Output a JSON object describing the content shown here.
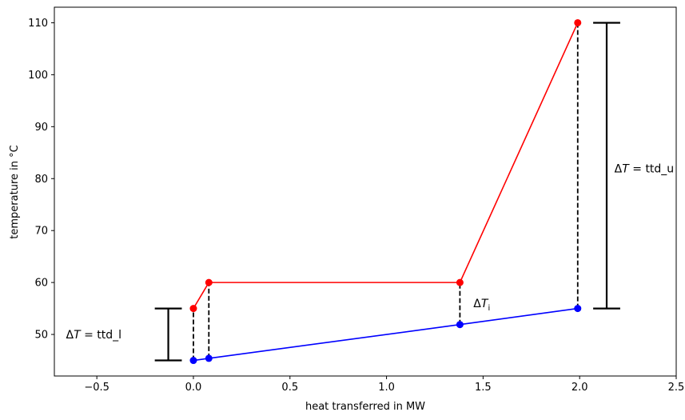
{
  "chart_data": {
    "type": "line",
    "title": "",
    "xlabel": "heat transferred in MW",
    "ylabel": "temperature in °C",
    "xlim": [
      -0.72,
      2.5
    ],
    "ylim": [
      42,
      113
    ],
    "grid": false,
    "xticks": [
      -0.5,
      0.0,
      0.5,
      1.0,
      1.5,
      2.0,
      2.5
    ],
    "xtick_labels": [
      "−0.5",
      "0.0",
      "0.5",
      "1.0",
      "1.5",
      "2.0",
      "2.5"
    ],
    "yticks": [
      50,
      60,
      70,
      80,
      90,
      100,
      110
    ],
    "ytick_labels": [
      "50",
      "60",
      "70",
      "80",
      "90",
      "100",
      "110"
    ],
    "series": [
      {
        "color": "#ff0000",
        "x": [
          0.0,
          0.08,
          1.38,
          1.99
        ],
        "y": [
          55,
          60,
          60,
          110
        ]
      },
      {
        "color": "#0000ff",
        "x": [
          0.0,
          0.08,
          1.38,
          1.99
        ],
        "y": [
          45,
          45.4,
          51.9,
          55
        ]
      }
    ],
    "dashed_connectors": [
      {
        "x": 0.0,
        "y1": 45,
        "y2": 55
      },
      {
        "x": 0.08,
        "y1": 45.4,
        "y2": 60
      },
      {
        "x": 1.38,
        "y1": 51.9,
        "y2": 60
      },
      {
        "x": 1.99,
        "y1": 55,
        "y2": 110
      }
    ],
    "error_bars": [
      {
        "x": -0.13,
        "y1": 45,
        "y2": 55,
        "cap_halfwidth": 0.07
      },
      {
        "x": 2.14,
        "y1": 55,
        "y2": 110,
        "cap_halfwidth": 0.07
      }
    ],
    "annotations": [
      {
        "id": "ttd-l",
        "prefix": "Δ",
        "var": "T",
        "sub": "",
        "suffix": " = ttd_l",
        "x": -0.66,
        "y": 50
      },
      {
        "id": "ttd-u",
        "prefix": "Δ",
        "var": "T",
        "sub": "",
        "suffix": " = ttd_u",
        "x": 2.18,
        "y": 82
      },
      {
        "id": "delta-ti",
        "prefix": "Δ",
        "var": "T",
        "sub": "i",
        "suffix": "",
        "x": 1.45,
        "y": 56
      }
    ]
  }
}
